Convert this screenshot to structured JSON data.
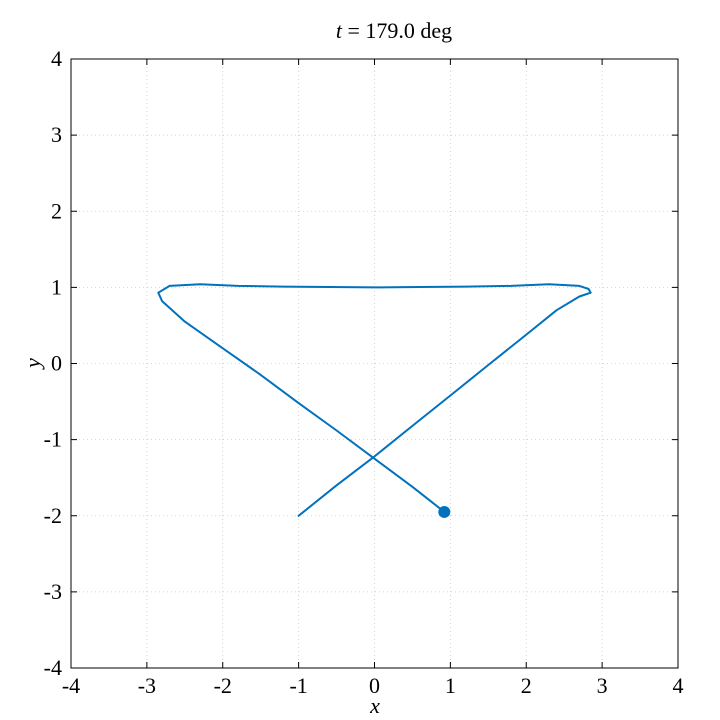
{
  "chart_data": {
    "type": "line",
    "title_var": "t",
    "title_eq": " = ",
    "title_value": "179.0 deg",
    "xlabel": "x",
    "ylabel": "y",
    "xlim": [
      -4,
      4
    ],
    "ylim": [
      -4,
      4
    ],
    "xticks": [
      -4,
      -3,
      -2,
      -1,
      0,
      1,
      2,
      3,
      4
    ],
    "yticks": [
      -4,
      -3,
      -2,
      -1,
      0,
      1,
      2,
      3,
      4
    ],
    "xtick_labels": [
      "-4",
      "-3",
      "-2",
      "-1",
      "0",
      "1",
      "2",
      "3",
      "4"
    ],
    "ytick_labels": [
      "-4",
      "-3",
      "-2",
      "-1",
      "0",
      "1",
      "2",
      "3",
      "4"
    ],
    "grid": true,
    "colors": {
      "series": "#0072BD",
      "grid": "#c8c8c8",
      "axes": "#000000"
    },
    "series": [
      {
        "x": [
          -1.0,
          -0.5,
          0.0,
          0.5,
          1.0,
          1.5,
          2.0,
          2.4,
          2.7,
          2.85,
          2.82,
          2.7,
          2.3,
          1.8,
          1.2,
          0.6,
          0.0,
          -0.6,
          -1.2,
          -1.8,
          -2.3,
          -2.7,
          -2.85,
          -2.8,
          -2.5,
          -2.0,
          -1.5,
          -1.0,
          -0.5,
          0.0,
          0.5,
          0.92
        ],
        "y": [
          -2.0,
          -1.6,
          -1.22,
          -0.82,
          -0.42,
          -0.02,
          0.38,
          0.7,
          0.88,
          0.93,
          0.98,
          1.02,
          1.04,
          1.02,
          1.01,
          1.005,
          1.0,
          1.005,
          1.01,
          1.02,
          1.04,
          1.02,
          0.93,
          0.82,
          0.55,
          0.2,
          -0.15,
          -0.52,
          -0.88,
          -1.25,
          -1.62,
          -1.95
        ]
      }
    ],
    "current_point": {
      "x": 0.92,
      "y": -1.95
    }
  }
}
